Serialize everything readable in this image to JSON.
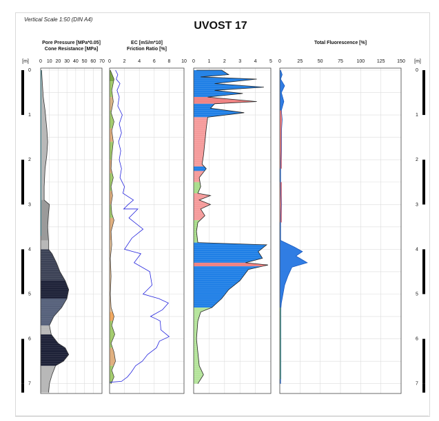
{
  "header": {
    "scale_note": "Vertical Scale 1:50 (DIN A4)",
    "title": "UVOST 17"
  },
  "chart_data": {
    "type": "line",
    "depth_unit_label": "[m]",
    "depth_ticks": [
      "0",
      "1",
      "2",
      "3",
      "4",
      "5",
      "6",
      "7"
    ],
    "depth_range": [
      0,
      7.2
    ],
    "panels": [
      {
        "id": "cpt",
        "title_lines": [
          "Pore Pressure [MPa*0.05]",
          "Cone Resistance [MPa]"
        ],
        "ticks": [
          "0",
          "10",
          "20",
          "30",
          "40",
          "50",
          "60",
          "70"
        ],
        "xlim": [
          0,
          70
        ],
        "series": [
          {
            "id": "pore-pressure",
            "color": "#18c0d8",
            "points": [
              [
                0,
                0
              ],
              [
                0,
                0.3
              ],
              [
                0,
                0.7
              ],
              [
                0,
                1.2
              ],
              [
                0,
                1.7
              ],
              [
                0,
                2.2
              ],
              [
                0,
                2.6
              ],
              [
                0,
                3.0
              ],
              [
                0,
                3.3
              ],
              [
                0,
                3.5
              ],
              [
                0,
                3.7
              ]
            ]
          },
          {
            "id": "cone-resistance",
            "color": "#333333",
            "points": [
              [
                1,
                0
              ],
              [
                2,
                0.3
              ],
              [
                3,
                0.6
              ],
              [
                5,
                0.9
              ],
              [
                6,
                1.1
              ],
              [
                7,
                1.3
              ],
              [
                8,
                1.6
              ],
              [
                7,
                1.9
              ],
              [
                5,
                2.2
              ],
              [
                4,
                2.6
              ],
              [
                4,
                2.9
              ],
              [
                10,
                3.0
              ],
              [
                9,
                3.2
              ],
              [
                8,
                3.5
              ],
              [
                9,
                3.8
              ],
              [
                9,
                4.0
              ],
              [
                13,
                4.1
              ],
              [
                18,
                4.3
              ],
              [
                22,
                4.5
              ],
              [
                28,
                4.7
              ],
              [
                32,
                4.9
              ],
              [
                30,
                5.1
              ],
              [
                24,
                5.3
              ],
              [
                15,
                5.5
              ],
              [
                10,
                5.7
              ],
              [
                12,
                5.9
              ],
              [
                20,
                6.1
              ],
              [
                28,
                6.2
              ],
              [
                32,
                6.35
              ],
              [
                26,
                6.5
              ],
              [
                17,
                6.6
              ],
              [
                13,
                6.8
              ],
              [
                10,
                7.0
              ],
              [
                9,
                7.2
              ]
            ]
          }
        ]
      },
      {
        "id": "ec-fr",
        "title_lines": [
          "EC [mS/m*10]",
          "Friction Ratio [%]"
        ],
        "ticks": [
          "0",
          "2",
          "4",
          "6",
          "8",
          "10"
        ],
        "xlim": [
          0,
          10
        ],
        "series": [
          {
            "id": "ec",
            "color": "#2222dd",
            "points": [
              [
                0.8,
                0
              ],
              [
                1.1,
                0.1
              ],
              [
                0.9,
                0.2
              ],
              [
                1.4,
                0.3
              ],
              [
                1.0,
                0.45
              ],
              [
                1.3,
                0.6
              ],
              [
                1.1,
                0.8
              ],
              [
                1.7,
                1.0
              ],
              [
                1.3,
                1.2
              ],
              [
                1.6,
                1.4
              ],
              [
                1.2,
                1.6
              ],
              [
                1.5,
                1.8
              ],
              [
                1.3,
                2.0
              ],
              [
                1.6,
                2.2
              ],
              [
                1.4,
                2.4
              ],
              [
                2.0,
                2.6
              ],
              [
                1.8,
                2.75
              ],
              [
                3.2,
                2.9
              ],
              [
                2.5,
                3.0
              ],
              [
                1.9,
                3.1
              ],
              [
                3.8,
                3.1
              ],
              [
                2.6,
                3.3
              ],
              [
                4.5,
                3.55
              ],
              [
                3.0,
                3.75
              ],
              [
                2.0,
                4.0
              ],
              [
                4.2,
                4.1
              ],
              [
                3.3,
                4.3
              ],
              [
                5.4,
                4.5
              ],
              [
                5.7,
                4.8
              ],
              [
                4.5,
                5.0
              ],
              [
                6.6,
                5.1
              ],
              [
                7.9,
                5.2
              ],
              [
                7.1,
                5.35
              ],
              [
                5.5,
                5.5
              ],
              [
                6.2,
                5.55
              ],
              [
                6.8,
                5.6
              ],
              [
                6.9,
                5.8
              ],
              [
                8.0,
                5.95
              ],
              [
                6.7,
                6.05
              ],
              [
                6.3,
                6.2
              ],
              [
                5.1,
                6.35
              ],
              [
                4.4,
                6.5
              ],
              [
                3.5,
                6.6
              ],
              [
                2.9,
                6.75
              ],
              [
                2.4,
                6.85
              ],
              [
                1.6,
                6.95
              ],
              [
                0.0,
                6.97
              ]
            ]
          },
          {
            "id": "friction-ratio",
            "color": "#333333",
            "points": [
              [
                0.1,
                0
              ],
              [
                0.6,
                0.2
              ],
              [
                0.3,
                0.45
              ],
              [
                0.5,
                0.7
              ],
              [
                0.2,
                0.95
              ],
              [
                0.6,
                1.15
              ],
              [
                0.3,
                1.35
              ],
              [
                0.5,
                1.6
              ],
              [
                0.3,
                1.9
              ],
              [
                0.2,
                2.2
              ],
              [
                0.5,
                2.4
              ],
              [
                0.2,
                2.6
              ],
              [
                0.4,
                2.8
              ],
              [
                0.2,
                3.0
              ],
              [
                0.3,
                3.2
              ],
              [
                0.6,
                3.35
              ],
              [
                0.2,
                3.6
              ],
              [
                0.3,
                3.9
              ],
              [
                0.1,
                4.2
              ],
              [
                0.2,
                4.6
              ],
              [
                0.1,
                5.0
              ],
              [
                0.2,
                5.3
              ],
              [
                0.6,
                5.5
              ],
              [
                0.3,
                5.7
              ],
              [
                0.7,
                5.9
              ],
              [
                0.2,
                6.1
              ],
              [
                0.6,
                6.3
              ],
              [
                0.8,
                6.5
              ],
              [
                0.3,
                6.7
              ],
              [
                0.6,
                6.85
              ],
              [
                0.2,
                7.0
              ]
            ]
          }
        ]
      },
      {
        "id": "channels",
        "title_lines": [],
        "ticks": [
          "0",
          "1",
          "2",
          "3",
          "4",
          "5"
        ],
        "xlim": [
          0,
          5.5
        ],
        "series": [
          {
            "id": "total-response",
            "color": "#111111",
            "points": [
              [
                0.2,
                0
              ],
              [
                2.0,
                0
              ],
              [
                2.5,
                0.1
              ],
              [
                0.5,
                0.15
              ],
              [
                4.5,
                0.2
              ],
              [
                1.5,
                0.3
              ],
              [
                5.0,
                0.38
              ],
              [
                1.5,
                0.45
              ],
              [
                3.5,
                0.52
              ],
              [
                1.0,
                0.6
              ],
              [
                4.5,
                0.7
              ],
              [
                1.5,
                0.75
              ],
              [
                1.2,
                0.85
              ],
              [
                3.6,
                0.95
              ],
              [
                1.0,
                1.05
              ],
              [
                0.9,
                1.3
              ],
              [
                0.8,
                1.6
              ],
              [
                0.7,
                1.9
              ],
              [
                0.6,
                2.1
              ],
              [
                0.9,
                2.2
              ],
              [
                0.4,
                2.4
              ],
              [
                0.5,
                2.6
              ],
              [
                0.3,
                2.75
              ],
              [
                1.2,
                2.8
              ],
              [
                0.4,
                2.9
              ],
              [
                1.2,
                3.0
              ],
              [
                0.5,
                3.1
              ],
              [
                0.8,
                3.25
              ],
              [
                0.3,
                3.4
              ],
              [
                0.2,
                3.6
              ],
              [
                0.3,
                3.85
              ],
              [
                5.2,
                3.9
              ],
              [
                4.6,
                4.05
              ],
              [
                4.9,
                4.2
              ],
              [
                3.7,
                4.3
              ],
              [
                5.3,
                4.35
              ],
              [
                3.9,
                4.45
              ],
              [
                3.3,
                4.7
              ],
              [
                2.5,
                4.9
              ],
              [
                2.0,
                5.1
              ],
              [
                1.3,
                5.3
              ],
              [
                0.5,
                5.4
              ],
              [
                0.3,
                5.6
              ],
              [
                0.2,
                6.0
              ],
              [
                0.3,
                6.3
              ],
              [
                0.4,
                6.6
              ],
              [
                0.7,
                6.8
              ],
              [
                0.3,
                7.0
              ]
            ]
          }
        ]
      },
      {
        "id": "fluorescence",
        "title_lines": [
          "Total Fluorescence [%]"
        ],
        "ticks": [
          "0",
          "25",
          "50",
          "75",
          "100",
          "125",
          "150"
        ],
        "xlim": [
          0,
          150
        ],
        "series": [
          {
            "id": "total-fluorescence",
            "color": "#1a6fe0",
            "points": [
              [
                1,
                0
              ],
              [
                3,
                0.1
              ],
              [
                1,
                0.2
              ],
              [
                6,
                0.35
              ],
              [
                2,
                0.5
              ],
              [
                5,
                0.7
              ],
              [
                2,
                0.9
              ],
              [
                3,
                1.1
              ],
              [
                2,
                1.4
              ],
              [
                2,
                1.8
              ],
              [
                1,
                2.2
              ],
              [
                1,
                2.6
              ],
              [
                2,
                3.0
              ],
              [
                1,
                3.4
              ],
              [
                1,
                3.8
              ],
              [
                18,
                3.95
              ],
              [
                28,
                4.05
              ],
              [
                20,
                4.15
              ],
              [
                34,
                4.3
              ],
              [
                15,
                4.4
              ],
              [
                10,
                4.6
              ],
              [
                6,
                4.8
              ],
              [
                4,
                5.0
              ],
              [
                2,
                5.2
              ],
              [
                1,
                5.4
              ],
              [
                1,
                6.0
              ],
              [
                1,
                6.5
              ],
              [
                1,
                7.0
              ]
            ]
          }
        ]
      }
    ]
  }
}
